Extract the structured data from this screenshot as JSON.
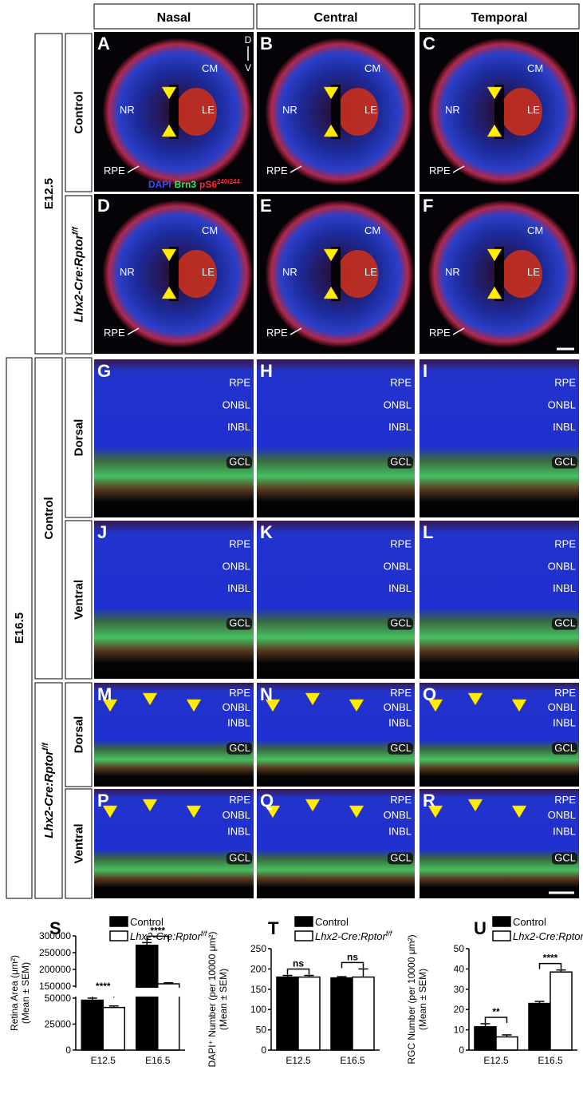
{
  "columns": [
    "Nasal",
    "Central",
    "Temporal"
  ],
  "row_groups": [
    {
      "label": "E12.5",
      "rows": [
        {
          "label": "Control"
        },
        {
          "label": "Lhx2-Cre:Rptor",
          "label_superscript": "f/f"
        }
      ]
    },
    {
      "label": "E16.5",
      "subgroups": [
        {
          "label": "Control",
          "rows": [
            {
              "label": "Dorsal"
            },
            {
              "label": "Ventral"
            }
          ]
        },
        {
          "label": "Lhx2-Cre:Rptor",
          "label_superscript": "f/f",
          "rows": [
            {
              "label": "Dorsal"
            },
            {
              "label": "Ventral"
            }
          ]
        }
      ]
    }
  ],
  "panels": [
    {
      "letter": "A",
      "labels": [
        "CM",
        "NR",
        "LE",
        "RPE"
      ]
    },
    {
      "letter": "B",
      "labels": [
        "CM",
        "NR",
        "LE",
        "RPE"
      ]
    },
    {
      "letter": "C",
      "labels": [
        "CM",
        "NR",
        "LE",
        "RPE"
      ]
    },
    {
      "letter": "D",
      "labels": [
        "CM",
        "NR",
        "LE",
        "RPE"
      ]
    },
    {
      "letter": "E",
      "labels": [
        "CM",
        "NR",
        "LE",
        "RPE"
      ]
    },
    {
      "letter": "F",
      "labels": [
        "CM",
        "NR",
        "LE",
        "RPE"
      ]
    },
    {
      "letter": "G",
      "labels": [
        "RPE",
        "ONBL",
        "INBL",
        "GCL"
      ]
    },
    {
      "letter": "H",
      "labels": [
        "RPE",
        "ONBL",
        "INBL",
        "GCL"
      ]
    },
    {
      "letter": "I",
      "labels": [
        "RPE",
        "ONBL",
        "INBL",
        "GCL"
      ]
    },
    {
      "letter": "J",
      "labels": [
        "RPE",
        "ONBL",
        "INBL",
        "GCL"
      ]
    },
    {
      "letter": "K",
      "labels": [
        "RPE",
        "ONBL",
        "INBL",
        "GCL"
      ]
    },
    {
      "letter": "L",
      "labels": [
        "RPE",
        "ONBL",
        "INBL",
        "GCL"
      ]
    },
    {
      "letter": "M",
      "labels": [
        "RPE",
        "ONBL",
        "INBL",
        "GCL"
      ]
    },
    {
      "letter": "N",
      "labels": [
        "RPE",
        "ONBL",
        "INBL",
        "GCL"
      ]
    },
    {
      "letter": "O",
      "labels": [
        "RPE",
        "ONBL",
        "INBL",
        "GCL"
      ]
    },
    {
      "letter": "P",
      "labels": [
        "RPE",
        "ONBL",
        "INBL",
        "GCL"
      ]
    },
    {
      "letter": "Q",
      "labels": [
        "RPE",
        "ONBL",
        "INBL",
        "GCL"
      ]
    },
    {
      "letter": "R",
      "labels": [
        "RPE",
        "ONBL",
        "INBL",
        "GCL"
      ]
    }
  ],
  "orientation": {
    "dorsal": "D",
    "ventral": "V"
  },
  "stain_legend": [
    {
      "text": "DAPI",
      "color": "#3a4cff"
    },
    {
      "text": "Brn3",
      "color": "#2ee66a"
    },
    {
      "text": "pS6",
      "color": "#ff2a3a",
      "superscript": "240/244"
    }
  ],
  "chart_data": [
    {
      "type": "bar",
      "label": "S",
      "y_label": [
        "Retina Area (μm²)",
        "(Mean ± SEM)"
      ],
      "categories": [
        "E12.5",
        "E16.5"
      ],
      "series": [
        {
          "name": "Control",
          "color": "#000000",
          "values": [
            48000,
            272000
          ],
          "errors": [
            2000,
            8000
          ]
        },
        {
          "name": "Lhx2-Cre:Rptor",
          "name_superscript": "f/f",
          "color": "#ffffff",
          "values": [
            41000,
            157000
          ],
          "errors": [
            1500,
            3000
          ]
        }
      ],
      "ylim": [
        0,
        300000
      ],
      "axis_break": [
        50000,
        150000
      ],
      "yticks": [
        0,
        25000,
        50000,
        150000,
        200000,
        250000,
        300000
      ],
      "annotations": [
        "****",
        "****"
      ]
    },
    {
      "type": "bar",
      "label": "T",
      "y_label": [
        "DAPI⁺ Number (per 10000 μm²)",
        "(Mean ± SEM)"
      ],
      "categories": [
        "E12.5",
        "E16.5"
      ],
      "series": [
        {
          "name": "Control",
          "color": "#000000",
          "values": [
            180,
            178
          ],
          "errors": [
            4,
            3
          ]
        },
        {
          "name": "Lhx2-Cre:Rptor",
          "name_superscript": "f/f",
          "color": "#ffffff",
          "values": [
            180,
            180
          ],
          "errors": [
            4,
            20
          ]
        }
      ],
      "ylim": [
        0,
        250
      ],
      "yticks": [
        0,
        50,
        100,
        150,
        200,
        250
      ],
      "annotations": [
        "ns",
        "ns"
      ]
    },
    {
      "type": "bar",
      "label": "U",
      "y_label": [
        "RGC Number (per 10000 μm²)",
        "(Mean ± SEM)"
      ],
      "categories": [
        "E12.5",
        "E16.5"
      ],
      "series": [
        {
          "name": "Control",
          "color": "#000000",
          "values": [
            11.5,
            23
          ],
          "errors": [
            1.5,
            1
          ]
        },
        {
          "name": "Lhx2-Cre:Rptor",
          "name_superscript": "f/f",
          "color": "#ffffff",
          "values": [
            6.5,
            38.5
          ],
          "errors": [
            1,
            1
          ]
        }
      ],
      "ylim": [
        0,
        50
      ],
      "yticks": [
        0,
        10,
        20,
        30,
        40,
        50
      ],
      "annotations": [
        "**",
        "****"
      ]
    }
  ]
}
